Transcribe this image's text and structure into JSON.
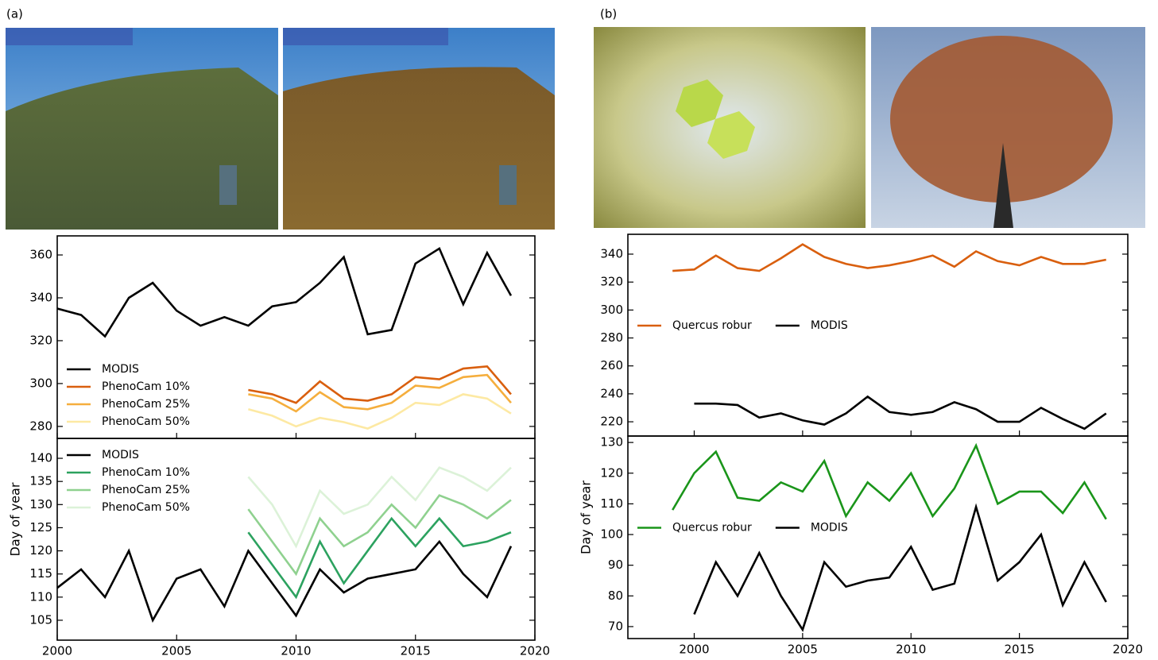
{
  "panel_labels": [
    "(a)",
    "(b)"
  ],
  "chart_data": [
    {
      "type": "line",
      "xlim": [
        2000,
        2020
      ],
      "xticks": [
        2000,
        2005,
        2010,
        2015,
        2020
      ],
      "show_xticklabels": false,
      "ylim": [
        274.4,
        368.9
      ],
      "yticks": [
        280,
        300,
        320,
        340,
        360
      ],
      "legend": "lower left",
      "legend_columns": 1,
      "series": [
        {
          "name": "MODIS",
          "color": "#000000",
          "x": [
            2000,
            2001,
            2002,
            2003,
            2004,
            2005,
            2006,
            2007,
            2008,
            2009,
            2010,
            2011,
            2012,
            2013,
            2014,
            2015,
            2016,
            2017,
            2018,
            2019
          ],
          "values": [
            335,
            332,
            322,
            340,
            347,
            334,
            327,
            331,
            327,
            336,
            338,
            347,
            359,
            323,
            325,
            356,
            363,
            337,
            361,
            341
          ]
        },
        {
          "name": "PhenoCam 10%",
          "color": "#d95f0e",
          "x": [
            2008,
            2009,
            2010,
            2011,
            2012,
            2013,
            2014,
            2015,
            2016,
            2017,
            2018,
            2019
          ],
          "values": [
            297,
            295,
            291,
            301,
            293,
            292,
            295,
            303,
            302,
            307,
            308,
            295
          ]
        },
        {
          "name": "PhenoCam 25%",
          "color": "#f5ae3d",
          "x": [
            2008,
            2009,
            2010,
            2011,
            2012,
            2013,
            2014,
            2015,
            2016,
            2017,
            2018,
            2019
          ],
          "values": [
            295,
            293,
            287,
            296,
            289,
            288,
            291,
            299,
            298,
            303,
            304,
            291
          ]
        },
        {
          "name": "PhenoCam 50%",
          "color": "#fde9a3",
          "x": [
            2008,
            2009,
            2010,
            2011,
            2012,
            2013,
            2014,
            2015,
            2016,
            2017,
            2018,
            2019
          ],
          "values": [
            288,
            285,
            280,
            284,
            282,
            279,
            284,
            291,
            290,
            295,
            293,
            286
          ]
        }
      ]
    },
    {
      "type": "line",
      "xlim": [
        2000,
        2020
      ],
      "xticks": [
        2000,
        2005,
        2010,
        2015,
        2020
      ],
      "show_xticklabels": true,
      "ylim": [
        100.7,
        144.3
      ],
      "yticks": [
        105,
        110,
        115,
        120,
        125,
        130,
        135,
        140
      ],
      "ylabel": "Day of year",
      "legend": "upper left",
      "legend_columns": 1,
      "series": [
        {
          "name": "MODIS",
          "color": "#000000",
          "x": [
            2000,
            2001,
            2002,
            2003,
            2004,
            2005,
            2006,
            2007,
            2008,
            2009,
            2010,
            2011,
            2012,
            2013,
            2014,
            2015,
            2016,
            2017,
            2018,
            2019
          ],
          "values": [
            112,
            116,
            110,
            120,
            105,
            114,
            116,
            108,
            120,
            113,
            106,
            116,
            111,
            114,
            115,
            116,
            122,
            115,
            110,
            121
          ]
        },
        {
          "name": "PhenoCam 10%",
          "color": "#2ca25f",
          "x": [
            2008,
            2009,
            2010,
            2011,
            2012,
            2013,
            2014,
            2015,
            2016,
            2017,
            2018,
            2019
          ],
          "values": [
            124,
            117,
            110,
            122,
            113,
            120,
            127,
            121,
            127,
            121,
            122,
            124
          ]
        },
        {
          "name": "PhenoCam 25%",
          "color": "#8fd18f",
          "x": [
            2008,
            2009,
            2010,
            2011,
            2012,
            2013,
            2014,
            2015,
            2016,
            2017,
            2018,
            2019
          ],
          "values": [
            129,
            122,
            115,
            127,
            121,
            124,
            130,
            125,
            132,
            130,
            127,
            131
          ]
        },
        {
          "name": "PhenoCam 50%",
          "color": "#dcf2d8",
          "x": [
            2008,
            2009,
            2010,
            2011,
            2012,
            2013,
            2014,
            2015,
            2016,
            2017,
            2018,
            2019
          ],
          "values": [
            136,
            130,
            121,
            133,
            128,
            130,
            136,
            131,
            138,
            136,
            133,
            138
          ]
        }
      ]
    },
    {
      "type": "line",
      "xlim": [
        1996.94,
        2020
      ],
      "xticks": [
        2000,
        2005,
        2010,
        2015,
        2020
      ],
      "show_xticklabels": false,
      "ylim": [
        209.8,
        354.2
      ],
      "yticks": [
        220,
        240,
        260,
        280,
        300,
        320,
        340
      ],
      "legend": "center left",
      "legend_columns": 2,
      "series": [
        {
          "name": "Quercus robur",
          "color": "#d95f0e",
          "x": [
            1999,
            2000,
            2001,
            2002,
            2003,
            2004,
            2005,
            2006,
            2007,
            2008,
            2009,
            2010,
            2011,
            2012,
            2013,
            2014,
            2015,
            2016,
            2017,
            2018,
            2019
          ],
          "values": [
            328,
            329,
            339,
            330,
            328,
            337,
            347,
            338,
            333,
            330,
            332,
            335,
            339,
            331,
            342,
            335,
            332,
            338,
            333,
            333,
            336
          ]
        },
        {
          "name": "MODIS",
          "color": "#000000",
          "x": [
            2000,
            2001,
            2002,
            2003,
            2004,
            2005,
            2006,
            2007,
            2008,
            2009,
            2010,
            2011,
            2012,
            2013,
            2014,
            2015,
            2016,
            2017,
            2018,
            2019
          ],
          "values": [
            233,
            233,
            232,
            223,
            226,
            221,
            218,
            226,
            238,
            227,
            225,
            227,
            234,
            229,
            220,
            220,
            230,
            222,
            215,
            226
          ]
        }
      ]
    },
    {
      "type": "line",
      "xlim": [
        1996.94,
        2020
      ],
      "xticks": [
        2000,
        2005,
        2010,
        2015,
        2020
      ],
      "show_xticklabels": true,
      "ylim": [
        66.1,
        132.1
      ],
      "yticks": [
        70,
        80,
        90,
        100,
        110,
        120,
        130
      ],
      "ylabel": "Day of year",
      "legend": "center left",
      "legend_columns": 2,
      "series": [
        {
          "name": "Quercus robur",
          "color": "#1a951a",
          "x": [
            1999,
            2000,
            2001,
            2002,
            2003,
            2004,
            2005,
            2006,
            2007,
            2008,
            2009,
            2010,
            2011,
            2012,
            2013,
            2014,
            2015,
            2016,
            2017,
            2018,
            2019
          ],
          "values": [
            108,
            120,
            127,
            112,
            111,
            117,
            114,
            124,
            106,
            117,
            111,
            120,
            106,
            115,
            129,
            110,
            114,
            114,
            107,
            117,
            105
          ]
        },
        {
          "name": "MODIS",
          "color": "#000000",
          "x": [
            2000,
            2001,
            2002,
            2003,
            2004,
            2005,
            2006,
            2007,
            2008,
            2009,
            2010,
            2011,
            2012,
            2013,
            2014,
            2015,
            2016,
            2017,
            2018,
            2019
          ],
          "values": [
            74,
            91,
            80,
            94,
            80,
            69,
            91,
            83,
            85,
            86,
            96,
            82,
            84,
            109,
            85,
            91,
            100,
            77,
            91,
            78
          ]
        }
      ]
    }
  ]
}
